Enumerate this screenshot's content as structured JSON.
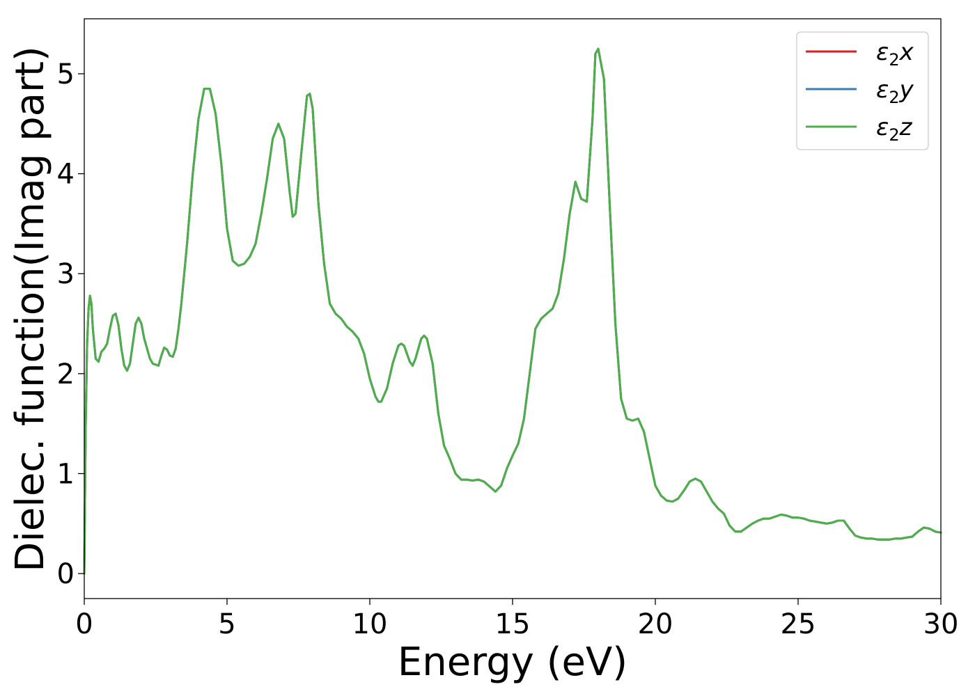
{
  "chart_data": {
    "type": "line",
    "title": "",
    "xlabel": "Energy (eV)",
    "ylabel": "Dielec. function(Imag part)",
    "xlim": [
      0,
      30
    ],
    "ylim": [
      -0.25,
      5.55
    ],
    "x_ticks": [
      0,
      5,
      10,
      15,
      20,
      25,
      30
    ],
    "y_ticks": [
      0,
      1,
      2,
      3,
      4,
      5
    ],
    "grid": false,
    "legend_position": "top-right",
    "series": [
      {
        "name": "ε2x",
        "legend_main": "ε",
        "legend_sub": "2",
        "legend_var": "x",
        "color": "#e41a1c"
      },
      {
        "name": "ε2y",
        "legend_main": "ε",
        "legend_sub": "2",
        "legend_var": "y",
        "color": "#377eb8"
      },
      {
        "name": "ε2z",
        "legend_main": "ε",
        "legend_sub": "2",
        "legend_var": "z",
        "color": "#4daf4a"
      }
    ],
    "x": [
      0.0,
      0.05,
      0.1,
      0.15,
      0.2,
      0.25,
      0.3,
      0.4,
      0.5,
      0.6,
      0.7,
      0.8,
      0.9,
      1.0,
      1.1,
      1.2,
      1.3,
      1.4,
      1.5,
      1.6,
      1.7,
      1.8,
      1.9,
      2.0,
      2.1,
      2.2,
      2.3,
      2.4,
      2.6,
      2.7,
      2.8,
      2.9,
      3.0,
      3.1,
      3.2,
      3.3,
      3.4,
      3.6,
      3.8,
      4.0,
      4.2,
      4.4,
      4.6,
      4.8,
      5.0,
      5.2,
      5.4,
      5.6,
      5.8,
      6.0,
      6.2,
      6.4,
      6.6,
      6.8,
      7.0,
      7.2,
      7.3,
      7.4,
      7.6,
      7.8,
      7.9,
      8.0,
      8.2,
      8.4,
      8.6,
      8.8,
      9.0,
      9.2,
      9.4,
      9.6,
      9.8,
      10.0,
      10.2,
      10.3,
      10.4,
      10.6,
      10.8,
      11.0,
      11.1,
      11.2,
      11.4,
      11.5,
      11.6,
      11.8,
      11.9,
      12.0,
      12.2,
      12.4,
      12.6,
      12.8,
      13.0,
      13.2,
      13.4,
      13.6,
      13.8,
      14.0,
      14.2,
      14.4,
      14.6,
      14.8,
      15.0,
      15.2,
      15.4,
      15.6,
      15.8,
      16.0,
      16.2,
      16.4,
      16.6,
      16.8,
      17.0,
      17.2,
      17.4,
      17.6,
      17.8,
      17.9,
      18.0,
      18.2,
      18.4,
      18.6,
      18.8,
      19.0,
      19.2,
      19.4,
      19.6,
      19.8,
      20.0,
      20.2,
      20.4,
      20.6,
      20.8,
      21.0,
      21.2,
      21.4,
      21.6,
      21.8,
      22.0,
      22.2,
      22.4,
      22.6,
      22.8,
      23.0,
      23.2,
      23.4,
      23.6,
      23.8,
      24.0,
      24.2,
      24.4,
      24.6,
      24.8,
      25.0,
      25.2,
      25.4,
      25.6,
      25.8,
      26.0,
      26.2,
      26.4,
      26.6,
      26.8,
      27.0,
      27.2,
      27.4,
      27.6,
      27.8,
      28.0,
      28.2,
      28.4,
      28.6,
      28.8,
      29.0,
      29.2,
      29.4,
      29.6,
      29.8,
      30.0
    ],
    "y": [
      0.0,
      1.5,
      2.3,
      2.65,
      2.78,
      2.7,
      2.45,
      2.15,
      2.12,
      2.22,
      2.25,
      2.3,
      2.45,
      2.58,
      2.6,
      2.48,
      2.25,
      2.08,
      2.03,
      2.1,
      2.3,
      2.5,
      2.56,
      2.5,
      2.35,
      2.25,
      2.15,
      2.1,
      2.08,
      2.18,
      2.26,
      2.24,
      2.18,
      2.17,
      2.25,
      2.45,
      2.7,
      3.3,
      4.0,
      4.55,
      4.85,
      4.85,
      4.6,
      4.1,
      3.45,
      3.13,
      3.08,
      3.1,
      3.17,
      3.3,
      3.6,
      3.95,
      4.35,
      4.5,
      4.35,
      3.8,
      3.57,
      3.6,
      4.2,
      4.78,
      4.8,
      4.65,
      3.7,
      3.1,
      2.7,
      2.6,
      2.55,
      2.47,
      2.42,
      2.35,
      2.2,
      1.95,
      1.77,
      1.72,
      1.72,
      1.85,
      2.1,
      2.28,
      2.3,
      2.28,
      2.12,
      2.08,
      2.15,
      2.35,
      2.38,
      2.35,
      2.1,
      1.6,
      1.28,
      1.15,
      1.0,
      0.94,
      0.94,
      0.93,
      0.94,
      0.92,
      0.87,
      0.82,
      0.88,
      1.05,
      1.18,
      1.3,
      1.55,
      2.0,
      2.45,
      2.55,
      2.6,
      2.65,
      2.8,
      3.15,
      3.6,
      3.92,
      3.75,
      3.72,
      4.55,
      5.2,
      5.25,
      4.95,
      3.7,
      2.5,
      1.75,
      1.55,
      1.53,
      1.55,
      1.42,
      1.15,
      0.88,
      0.78,
      0.73,
      0.72,
      0.75,
      0.83,
      0.92,
      0.95,
      0.92,
      0.82,
      0.72,
      0.65,
      0.6,
      0.48,
      0.42,
      0.42,
      0.46,
      0.5,
      0.53,
      0.55,
      0.55,
      0.57,
      0.59,
      0.58,
      0.56,
      0.56,
      0.55,
      0.53,
      0.52,
      0.51,
      0.5,
      0.51,
      0.53,
      0.53,
      0.45,
      0.38,
      0.36,
      0.35,
      0.35,
      0.34,
      0.34,
      0.34,
      0.35,
      0.35,
      0.36,
      0.37,
      0.42,
      0.46,
      0.45,
      0.42,
      0.41
    ]
  }
}
